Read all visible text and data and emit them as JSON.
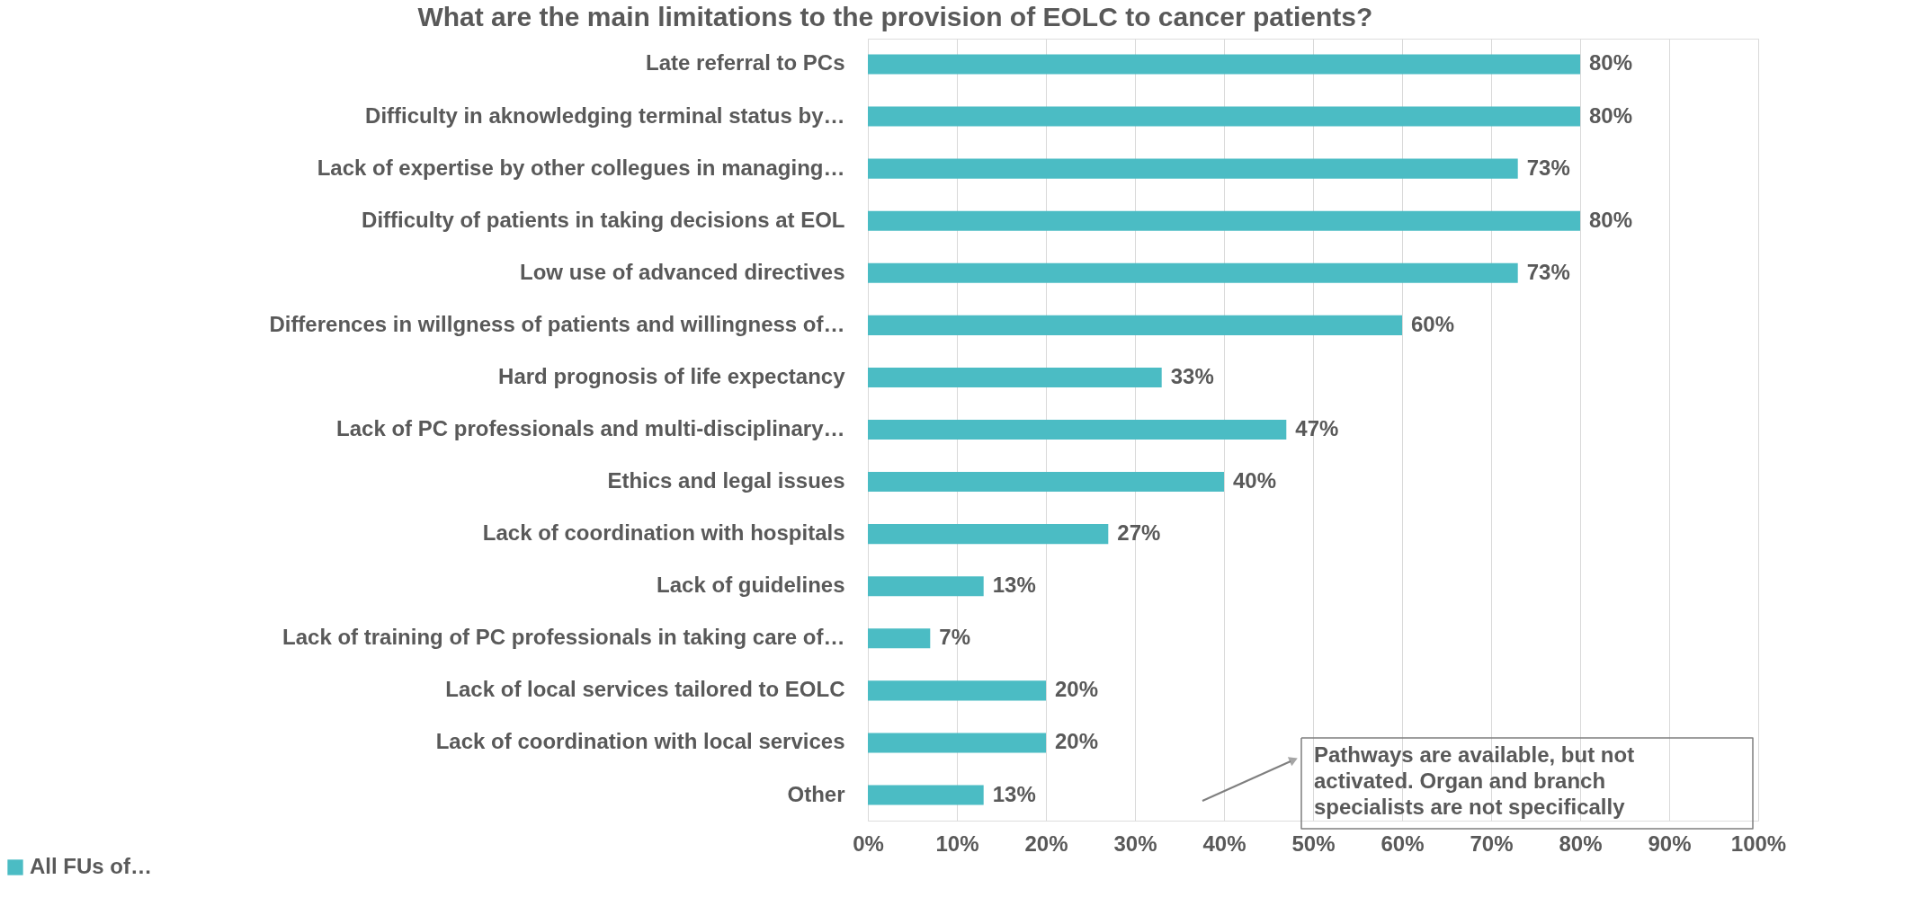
{
  "chart_data": {
    "type": "bar",
    "orientation": "horizontal",
    "title": "What are the main limitations to the provision of EOLC to cancer patients?",
    "categories": [
      "Late referral to PCs",
      "Difficulty in aknowledging terminal status by…",
      "Lack of expertise by other collegues in managing…",
      "Difficulty of patients in taking decisions at EOL",
      "Low use of advanced directives",
      "Differences in willgness of patients and willingness of…",
      "Hard prognosis of life expectancy",
      "Lack of PC professionals and multi-disciplinary…",
      "Ethics and legal issues",
      "Lack of coordination with hospitals",
      "Lack of guidelines",
      "Lack of training of PC professionals in taking care of…",
      "Lack of local services tailored to EOLC",
      "Lack of coordination with local services",
      "Other"
    ],
    "series": [
      {
        "name": "All FUs of…",
        "color": "#4bbcc4",
        "values": [
          80,
          80,
          73,
          80,
          73,
          60,
          33,
          47,
          40,
          27,
          13,
          7,
          20,
          20,
          13
        ],
        "value_labels": [
          "80%",
          "80%",
          "73%",
          "80%",
          "73%",
          "60%",
          "33%",
          "47%",
          "40%",
          "27%",
          "13%",
          "7%",
          "20%",
          "20%",
          "13%"
        ]
      }
    ],
    "xlim": [
      0,
      100
    ],
    "xticks": [
      {
        "value": 0,
        "label": "0%"
      },
      {
        "value": 10,
        "label": "10%"
      },
      {
        "value": 20,
        "label": "20%"
      },
      {
        "value": 30,
        "label": "30%"
      },
      {
        "value": 40,
        "label": "40%"
      },
      {
        "value": 50,
        "label": "50%"
      },
      {
        "value": 60,
        "label": "60%"
      },
      {
        "value": 70,
        "label": "70%"
      },
      {
        "value": 80,
        "label": "80%"
      },
      {
        "value": 90,
        "label": "90%"
      },
      {
        "value": 100,
        "label": "100%"
      }
    ],
    "grid": "x",
    "legend": "bottom left",
    "annotations": [
      "Pathways are available, but not activated. Organ and branch specialists are not specifically"
    ]
  }
}
